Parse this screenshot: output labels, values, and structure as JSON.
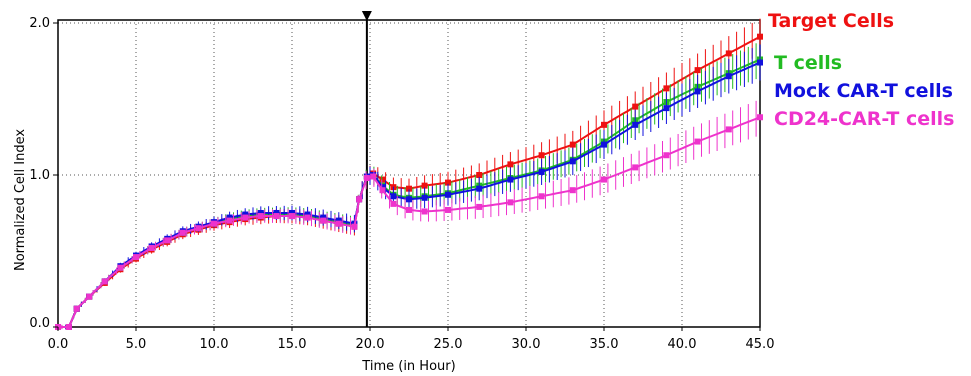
{
  "chart_data": {
    "type": "line",
    "title": "",
    "xlabel": "Time (in Hour)",
    "ylabel": "Normalized Cell Index",
    "xlim": [
      0,
      45
    ],
    "ylim": [
      0,
      2
    ],
    "x_ticks": [
      "0.0",
      "5.0",
      "10.0",
      "15.0",
      "20.0",
      "25.0",
      "30.0",
      "35.0",
      "40.0",
      "45.0"
    ],
    "y_ticks": [
      "0.0",
      "1.0",
      "2.0"
    ],
    "grid": true,
    "treatment_marker_x": 19.8,
    "legend_position": "right",
    "series": [
      {
        "name": "Target Cells",
        "color": "#ee1111",
        "x": [
          0,
          0.7,
          1.2,
          2,
          3,
          4,
          5,
          6,
          7,
          8,
          9,
          10,
          11,
          12,
          13,
          14,
          15,
          16,
          17,
          18,
          19,
          19.3,
          19.8,
          20.2,
          20.8,
          21.5,
          22.5,
          23.5,
          25,
          27,
          29,
          31,
          33,
          35,
          37,
          39,
          41,
          43,
          45
        ],
        "y": [
          0,
          0,
          0.12,
          0.2,
          0.29,
          0.38,
          0.45,
          0.51,
          0.56,
          0.61,
          0.64,
          0.67,
          0.69,
          0.71,
          0.72,
          0.73,
          0.73,
          0.72,
          0.7,
          0.68,
          0.66,
          0.84,
          0.99,
          1.01,
          0.97,
          0.92,
          0.91,
          0.93,
          0.95,
          1.0,
          1.07,
          1.13,
          1.2,
          1.33,
          1.45,
          1.57,
          1.69,
          1.8,
          1.91
        ]
      },
      {
        "name": "T cells",
        "color": "#22bb22",
        "x": [
          0,
          0.7,
          1.2,
          2,
          3,
          4,
          5,
          6,
          7,
          8,
          9,
          10,
          11,
          12,
          13,
          14,
          15,
          16,
          17,
          18,
          19,
          19.3,
          19.8,
          20.2,
          20.8,
          21.5,
          22.5,
          23.5,
          25,
          27,
          29,
          31,
          33,
          35,
          37,
          39,
          41,
          43,
          45
        ],
        "y": [
          0,
          0,
          0.12,
          0.2,
          0.3,
          0.39,
          0.46,
          0.52,
          0.57,
          0.62,
          0.65,
          0.68,
          0.71,
          0.73,
          0.74,
          0.74,
          0.74,
          0.73,
          0.71,
          0.69,
          0.67,
          0.84,
          0.99,
          1.0,
          0.93,
          0.87,
          0.85,
          0.86,
          0.88,
          0.93,
          0.98,
          1.03,
          1.1,
          1.22,
          1.36,
          1.48,
          1.58,
          1.67,
          1.76
        ]
      },
      {
        "name": "Mock CAR-T cells",
        "color": "#1111dd",
        "x": [
          0,
          0.7,
          1.2,
          2,
          3,
          4,
          5,
          6,
          7,
          8,
          9,
          10,
          11,
          12,
          13,
          14,
          15,
          16,
          17,
          18,
          19,
          19.3,
          19.8,
          20.2,
          20.8,
          21.5,
          22.5,
          23.5,
          25,
          27,
          29,
          31,
          33,
          35,
          37,
          39,
          41,
          43,
          45
        ],
        "y": [
          0,
          0,
          0.12,
          0.2,
          0.3,
          0.4,
          0.47,
          0.53,
          0.58,
          0.63,
          0.66,
          0.69,
          0.72,
          0.74,
          0.75,
          0.75,
          0.75,
          0.74,
          0.72,
          0.7,
          0.68,
          0.84,
          0.99,
          1.0,
          0.92,
          0.86,
          0.84,
          0.85,
          0.87,
          0.91,
          0.97,
          1.02,
          1.09,
          1.2,
          1.33,
          1.44,
          1.55,
          1.65,
          1.74
        ]
      },
      {
        "name": "CD24-CAR-T cells",
        "color": "#ee33cc",
        "x": [
          0,
          0.7,
          1.2,
          2,
          3,
          4,
          5,
          6,
          7,
          8,
          9,
          10,
          11,
          12,
          13,
          14,
          15,
          16,
          17,
          18,
          19,
          19.3,
          19.8,
          20.2,
          20.8,
          21.5,
          22.5,
          23.5,
          25,
          27,
          29,
          31,
          33,
          35,
          37,
          39,
          41,
          43,
          45
        ],
        "y": [
          0,
          0,
          0.12,
          0.2,
          0.3,
          0.39,
          0.46,
          0.52,
          0.57,
          0.62,
          0.65,
          0.68,
          0.7,
          0.72,
          0.73,
          0.73,
          0.73,
          0.72,
          0.7,
          0.68,
          0.66,
          0.84,
          0.98,
          0.99,
          0.9,
          0.81,
          0.77,
          0.76,
          0.77,
          0.79,
          0.82,
          0.86,
          0.9,
          0.97,
          1.05,
          1.13,
          1.22,
          1.3,
          1.38
        ]
      }
    ]
  }
}
